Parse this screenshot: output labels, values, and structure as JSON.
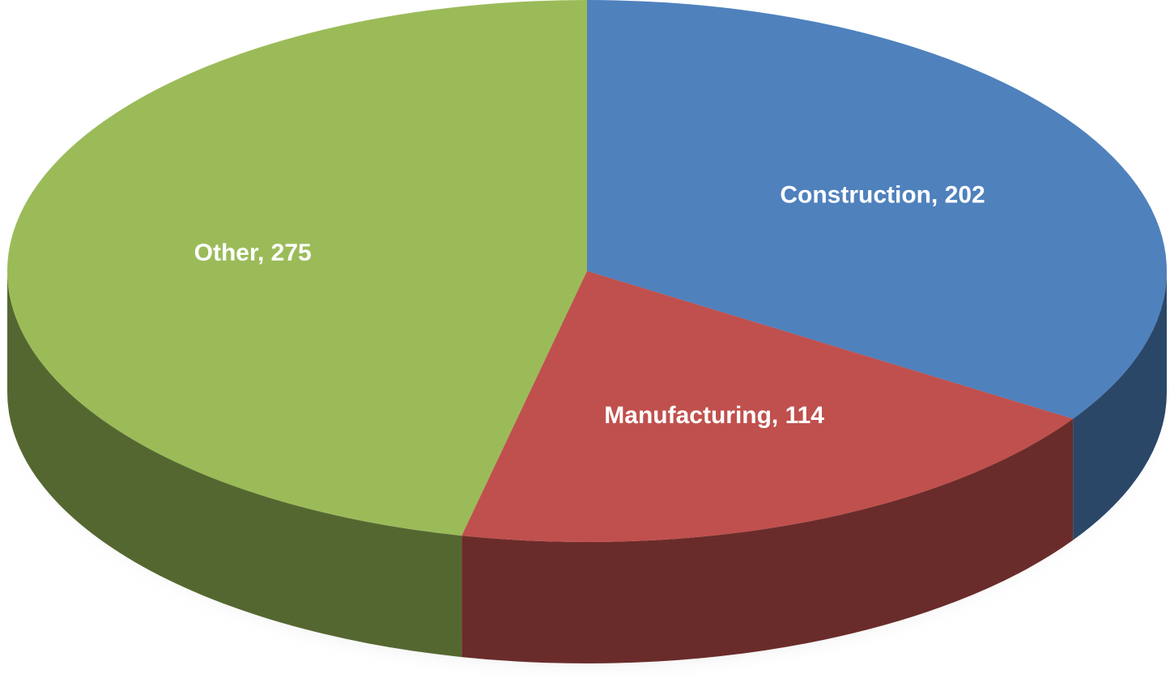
{
  "chart_data": {
    "type": "pie",
    "categories": [
      "Construction",
      "Manufacturing",
      "Other"
    ],
    "values": [
      202,
      114,
      275
    ],
    "value_labels": [
      "Construction, 202",
      "Manufacturing, 114",
      "Other, 275"
    ],
    "colors": [
      "#4f81bd",
      "#c0504d",
      "#9bbb59"
    ]
  }
}
